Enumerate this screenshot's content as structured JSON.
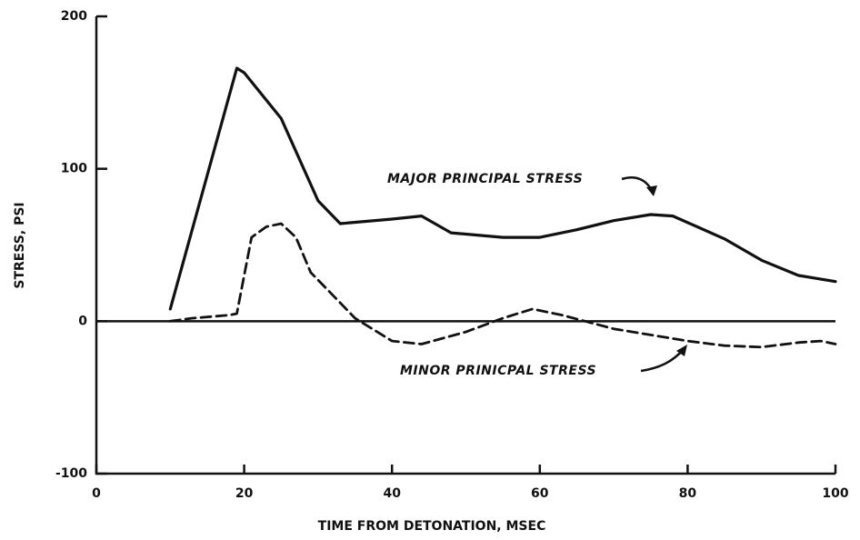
{
  "chart_data": {
    "type": "line",
    "x_label": "TIME FROM DETONATION, MSEC",
    "y_label": "STRESS, PSI",
    "annotations": [
      "MAJOR PRINCIPAL STRESS",
      "MINOR PRINICPAL STRESS"
    ],
    "xlim": [
      0,
      100
    ],
    "xticks": [
      0,
      20,
      40,
      60,
      80,
      100
    ],
    "ylim": [
      -100,
      200
    ],
    "yticks": [
      -100,
      0,
      100,
      200
    ],
    "series": [
      {
        "name": "MAJOR PRINCIPAL STRESS",
        "color": "#111111",
        "dashed": false,
        "x": [
          10,
          19,
          20,
          25,
          30,
          33,
          40,
          44,
          48,
          55,
          60,
          65,
          70,
          75,
          78,
          85,
          90,
          95,
          100
        ],
        "values": [
          8,
          166,
          163,
          133,
          79,
          64,
          67,
          69,
          58,
          55,
          55,
          60,
          66,
          70,
          69,
          54,
          40,
          30,
          26
        ]
      },
      {
        "name": "MINOR PRINICPAL STRESS",
        "color": "#111111",
        "dashed": true,
        "x": [
          10,
          13,
          18,
          19,
          21,
          23,
          25,
          27,
          29,
          32,
          35,
          40,
          44,
          50,
          55,
          59,
          63,
          70,
          80,
          85,
          90,
          95,
          98,
          100
        ],
        "values": [
          0,
          2,
          4,
          5,
          55,
          62,
          64,
          55,
          32,
          17,
          2,
          -13,
          -15,
          -7,
          2,
          8,
          4,
          -5,
          -13,
          -16,
          -17,
          -14,
          -13,
          -15
        ]
      }
    ]
  }
}
